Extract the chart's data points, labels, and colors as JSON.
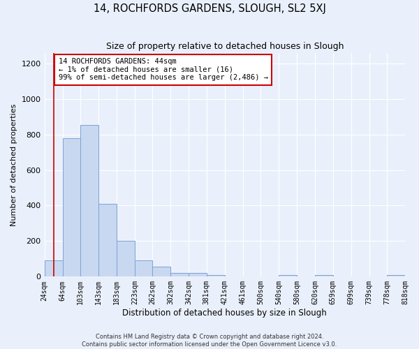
{
  "title": "14, ROCHFORDS GARDENS, SLOUGH, SL2 5XJ",
  "subtitle": "Size of property relative to detached houses in Slough",
  "xlabel": "Distribution of detached houses by size in Slough",
  "ylabel": "Number of detached properties",
  "footnote1": "Contains HM Land Registry data © Crown copyright and database right 2024.",
  "footnote2": "Contains public sector information licensed under the Open Government Licence v3.0.",
  "annotation_title": "14 ROCHFORDS GARDENS: 44sqm",
  "annotation_line1": "← 1% of detached houses are smaller (16)",
  "annotation_line2": "99% of semi-detached houses are larger (2,486) →",
  "bar_color": "#c8d8f0",
  "bar_edge_color": "#7ba3d8",
  "property_line_x": 44,
  "property_line_color": "#cc0000",
  "bin_edges": [
    24,
    64,
    103,
    143,
    183,
    223,
    262,
    302,
    342,
    381,
    421,
    461,
    500,
    540,
    580,
    620,
    659,
    699,
    739,
    778,
    818
  ],
  "bar_heights": [
    90,
    780,
    855,
    410,
    200,
    90,
    55,
    20,
    20,
    10,
    0,
    0,
    0,
    10,
    0,
    10,
    0,
    0,
    0,
    10
  ],
  "ylim": [
    0,
    1260
  ],
  "yticks": [
    0,
    200,
    400,
    600,
    800,
    1000,
    1200
  ],
  "bg_color": "#eaf0fb",
  "plot_bg_color": "#eaf0fb",
  "grid_color": "#ffffff",
  "annotation_box_color": "#ffffff",
  "annotation_box_edge_color": "#cc0000"
}
